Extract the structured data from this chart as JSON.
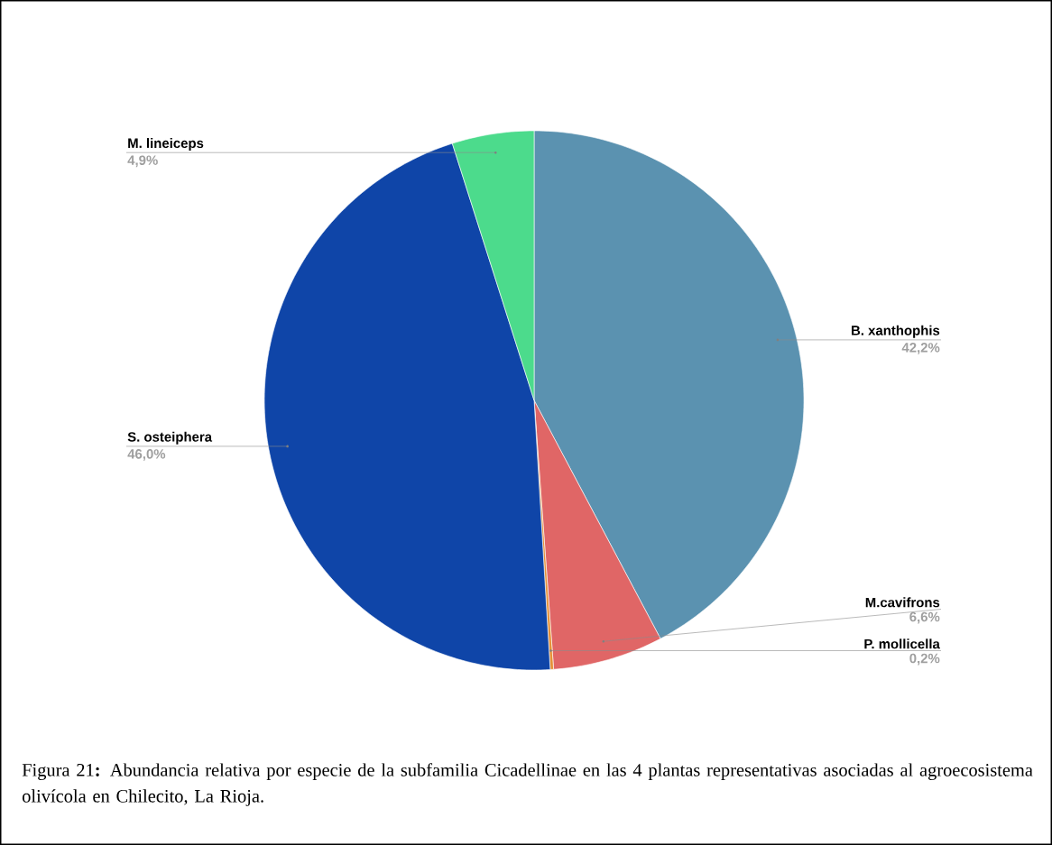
{
  "chart_data": {
    "type": "pie",
    "categories": [
      "B. xanthophis",
      "M.cavifrons",
      "P. mollicella",
      "S. osteiphera",
      "M. lineiceps"
    ],
    "values": [
      42.2,
      6.6,
      0.2,
      46.0,
      4.9
    ],
    "colors": [
      "#5b92b0",
      "#e06666",
      "#e69138",
      "#0f45a8",
      "#4cdb8c"
    ],
    "value_labels": [
      "42,2%",
      "6,6%",
      "0,2%",
      "46,0%",
      "4,9%"
    ],
    "annotations": [
      "Figura 21**:** Abundancia relativa por especie de la subfamilia Cicadellinae en las 4 plantas representativas asociadas al agroecosistema olivícola en Chilecito, La Rioja."
    ]
  }
}
